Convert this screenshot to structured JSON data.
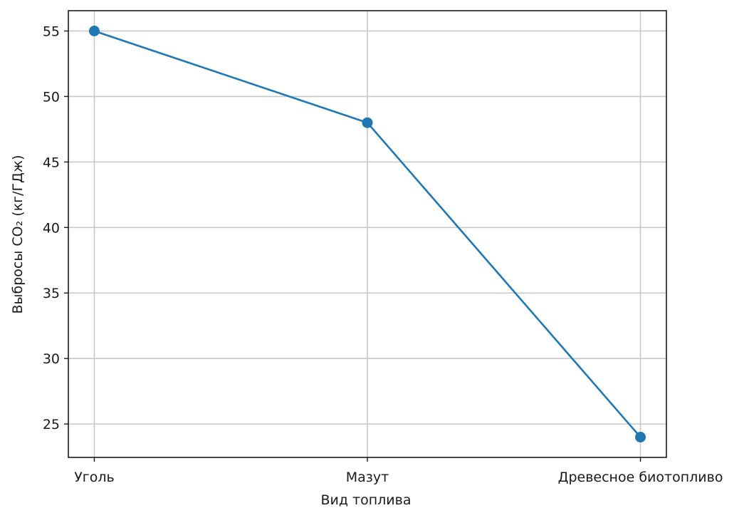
{
  "chart_data": {
    "type": "line",
    "title": "",
    "xlabel": "Вид топлива",
    "ylabel": "Выбросы CO₂ (кг/ГДж)",
    "categories": [
      "Уголь",
      "Мазут",
      "Древесное биотопливо"
    ],
    "series": [
      {
        "values": [
          55,
          48,
          24
        ],
        "color": "#1f77b4",
        "marker": "circle"
      }
    ],
    "ylim": [
      22.45,
      56.55
    ],
    "yticks": [
      25,
      30,
      35,
      40,
      45,
      50,
      55
    ],
    "grid": true,
    "legend": "none"
  }
}
